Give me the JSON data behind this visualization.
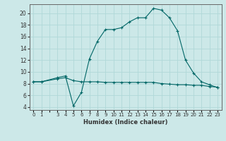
{
  "title": "",
  "xlabel": "Humidex (Indice chaleur)",
  "bg_color": "#cce8e8",
  "line_color": "#006666",
  "grid_color": "#b0d8d8",
  "series1_x": [
    0,
    1,
    3,
    4,
    5,
    6,
    7,
    8,
    9,
    10,
    11,
    12,
    13,
    14,
    15,
    16,
    17,
    18,
    19,
    20,
    21,
    22,
    23
  ],
  "series1_y": [
    8.3,
    8.3,
    9.0,
    9.3,
    4.2,
    6.5,
    12.2,
    15.2,
    17.2,
    17.2,
    17.5,
    18.5,
    19.2,
    19.2,
    20.8,
    20.5,
    19.2,
    17.0,
    12.0,
    9.8,
    8.3,
    7.8,
    7.3
  ],
  "series2_x": [
    0,
    1,
    3,
    4,
    5,
    6,
    7,
    8,
    9,
    10,
    11,
    12,
    13,
    14,
    15,
    16,
    17,
    18,
    19,
    20,
    21,
    22,
    23
  ],
  "series2_y": [
    8.3,
    8.3,
    8.8,
    9.0,
    8.5,
    8.3,
    8.3,
    8.3,
    8.2,
    8.2,
    8.2,
    8.2,
    8.2,
    8.2,
    8.2,
    8.0,
    7.9,
    7.8,
    7.8,
    7.7,
    7.7,
    7.5,
    7.4
  ],
  "xlim": [
    -0.5,
    23.5
  ],
  "ylim": [
    3.5,
    21.5
  ],
  "yticks": [
    4,
    6,
    8,
    10,
    12,
    14,
    16,
    18,
    20
  ],
  "xtick_labels": [
    "0",
    "1",
    "",
    "3",
    "4",
    "5",
    "6",
    "7",
    "8",
    "9",
    "10",
    "11",
    "12",
    "13",
    "14",
    "15",
    "16",
    "17",
    "18",
    "19",
    "20",
    "21",
    "22",
    "23"
  ],
  "xtick_positions": [
    0,
    1,
    2,
    3,
    4,
    5,
    6,
    7,
    8,
    9,
    10,
    11,
    12,
    13,
    14,
    15,
    16,
    17,
    18,
    19,
    20,
    21,
    22,
    23
  ]
}
